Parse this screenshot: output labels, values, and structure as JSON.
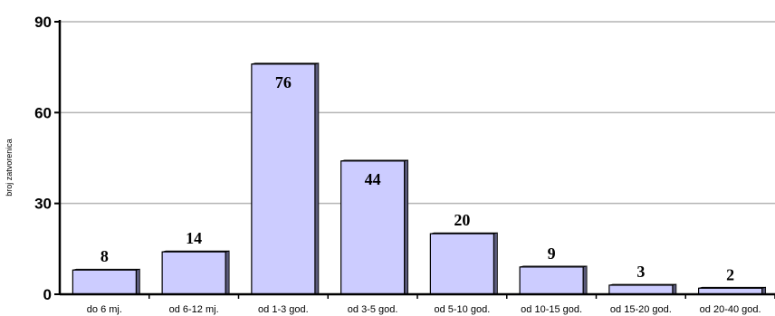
{
  "chart_data": {
    "type": "bar",
    "title": "",
    "xlabel": "",
    "ylabel": "broj zatvorenica",
    "categories": [
      "do 6 mj.",
      "od 6-12 mj.",
      "od 1-3 god.",
      "od 3-5 god.",
      "od 5-10 god.",
      "od 10-15 god.",
      "od 15-20 god.",
      "od 20-40 god."
    ],
    "values": [
      8,
      14,
      76,
      44,
      20,
      9,
      3,
      2
    ],
    "ylim": [
      0,
      90
    ],
    "yticks": [
      0,
      30,
      60,
      90
    ],
    "grid": true,
    "legend": "none",
    "colors": {
      "bar_face": "#ccccff",
      "bar_side": "#5a5a7a",
      "bar_edge": "#000000",
      "grid": "#b4b4b4",
      "axis": "#000000"
    }
  }
}
